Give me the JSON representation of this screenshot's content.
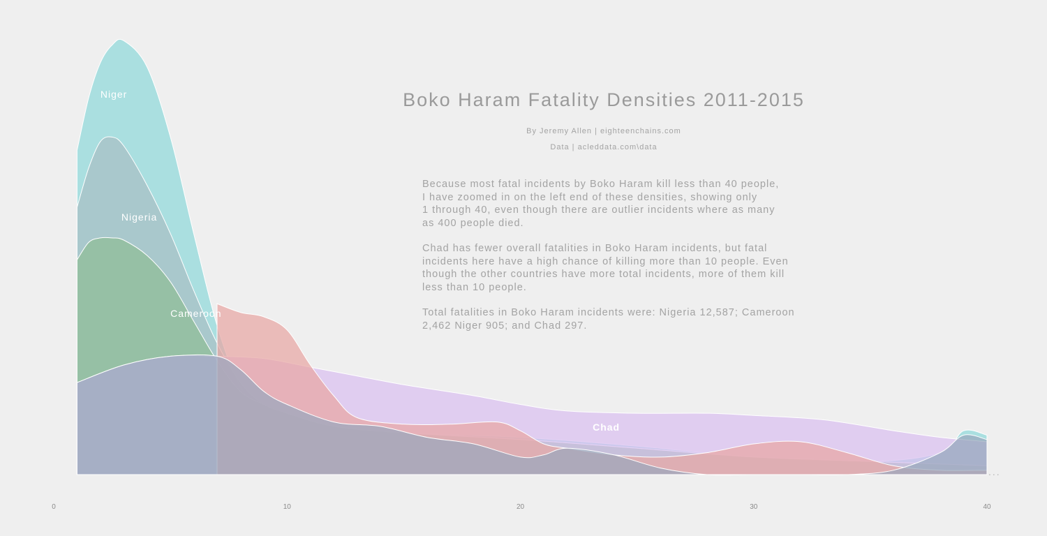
{
  "title": "Boko Haram Fatality Densities 2011-2015",
  "byline": "By Jeremy Allen | eighteenchains.com",
  "source": "Data | acleddata.com\\data",
  "notes": [
    [
      "Because most fatal incidents by Boko Haram kill less than 40 people,",
      "I have zoomed in on the left end of these densities, showing only",
      "1 through 40, even though there are outlier incidents where as many",
      "as 400 people died."
    ],
    [
      "Chad has fewer overall fatalities in Boko Haram incidents, but fatal",
      "incidents here have a high chance of killing more than 10 people. Even",
      "though the other countries have more total incidents, more of them kill",
      "less than 10 people."
    ],
    [
      "Total fatalities in Boko Haram incidents were: Nigeria 12,587; Cameroon",
      "2,462 Niger 905; and Chad 297."
    ]
  ],
  "ellipsis": "...",
  "chart_data": {
    "type": "area",
    "title": "Boko Haram Fatality Densities 2011-2015",
    "xlabel": "",
    "ylabel": "",
    "xlim": [
      0,
      40
    ],
    "ylim": [
      0,
      1
    ],
    "xticks": [
      0,
      10,
      20,
      30,
      40
    ],
    "grid": false,
    "legend": "inline labels",
    "series": [
      {
        "name": "Niger",
        "color": "#8fd8da",
        "points": [
          [
            1,
            0.74
          ],
          [
            1.5,
            0.86
          ],
          [
            2,
            0.94
          ],
          [
            2.5,
            0.98
          ],
          [
            3,
            0.99
          ],
          [
            4,
            0.93
          ],
          [
            5,
            0.77
          ],
          [
            6,
            0.55
          ],
          [
            7,
            0.34
          ],
          [
            8,
            0.2
          ],
          [
            9,
            0.15
          ],
          [
            10,
            0.13
          ],
          [
            12,
            0.11
          ],
          [
            15,
            0.095
          ],
          [
            20,
            0.085
          ],
          [
            25,
            0.065
          ],
          [
            30,
            0.04
          ],
          [
            35,
            0.03
          ],
          [
            38,
            0.05
          ],
          [
            39,
            0.1
          ],
          [
            40,
            0.09
          ]
        ]
      },
      {
        "name": "Nigeria",
        "color": "#a9bfc3",
        "points": [
          [
            1,
            0.61
          ],
          [
            1.5,
            0.7
          ],
          [
            2,
            0.76
          ],
          [
            2.5,
            0.77
          ],
          [
            3,
            0.75
          ],
          [
            4,
            0.66
          ],
          [
            5,
            0.55
          ],
          [
            6,
            0.42
          ],
          [
            7,
            0.3
          ],
          [
            8,
            0.21
          ],
          [
            9,
            0.16
          ],
          [
            10,
            0.14
          ],
          [
            12,
            0.11
          ],
          [
            15,
            0.095
          ],
          [
            20,
            0.08
          ],
          [
            25,
            0.06
          ],
          [
            30,
            0.04
          ],
          [
            35,
            0.03
          ],
          [
            40,
            0.02
          ]
        ]
      },
      {
        "name": "Cameroon",
        "color": "#8fbd96",
        "points": [
          [
            1,
            0.49
          ],
          [
            1.5,
            0.53
          ],
          [
            2,
            0.54
          ],
          [
            2.5,
            0.54
          ],
          [
            3,
            0.535
          ],
          [
            4,
            0.5
          ],
          [
            5,
            0.44
          ],
          [
            6,
            0.35
          ],
          [
            7,
            0.26
          ],
          [
            8,
            0.19
          ],
          [
            9,
            0.16
          ],
          [
            10,
            0.14
          ],
          [
            12,
            0.11
          ],
          [
            15,
            0.095
          ],
          [
            20,
            0.08
          ],
          [
            25,
            0.06
          ],
          [
            30,
            0.04
          ],
          [
            35,
            0.03
          ],
          [
            40,
            0.02
          ]
        ]
      },
      {
        "name": "Chad",
        "color": "#d9bff0",
        "points": [
          [
            1,
            0.21
          ],
          [
            3,
            0.25
          ],
          [
            5,
            0.27
          ],
          [
            7,
            0.27
          ],
          [
            9,
            0.265
          ],
          [
            11,
            0.245
          ],
          [
            13,
            0.225
          ],
          [
            15,
            0.205
          ],
          [
            18,
            0.18
          ],
          [
            20,
            0.16
          ],
          [
            22,
            0.145
          ],
          [
            25,
            0.14
          ],
          [
            28,
            0.14
          ],
          [
            30,
            0.135
          ],
          [
            33,
            0.125
          ],
          [
            36,
            0.1
          ],
          [
            38,
            0.085
          ],
          [
            40,
            0.075
          ]
        ]
      },
      {
        "name": "",
        "color": "#e8a6a3",
        "points": [
          [
            7,
            0.39
          ],
          [
            8,
            0.37
          ],
          [
            9,
            0.36
          ],
          [
            10,
            0.33
          ],
          [
            11,
            0.25
          ],
          [
            12,
            0.18
          ],
          [
            13,
            0.13
          ],
          [
            15,
            0.115
          ],
          [
            17,
            0.115
          ],
          [
            19,
            0.12
          ],
          [
            20,
            0.1
          ],
          [
            21,
            0.07
          ],
          [
            22,
            0.06
          ],
          [
            24,
            0.045
          ],
          [
            26,
            0.04
          ],
          [
            28,
            0.05
          ],
          [
            30,
            0.07
          ],
          [
            32,
            0.075
          ],
          [
            34,
            0.05
          ],
          [
            36,
            0.02
          ],
          [
            38,
            0.01
          ],
          [
            40,
            0.01
          ]
        ]
      },
      {
        "name": "",
        "color": "#9aa8bd",
        "points": [
          [
            1,
            0.21
          ],
          [
            3,
            0.25
          ],
          [
            5,
            0.27
          ],
          [
            7,
            0.27
          ],
          [
            8,
            0.24
          ],
          [
            9,
            0.19
          ],
          [
            10,
            0.16
          ],
          [
            12,
            0.12
          ],
          [
            14,
            0.11
          ],
          [
            16,
            0.085
          ],
          [
            18,
            0.07
          ],
          [
            20,
            0.04
          ],
          [
            21,
            0.045
          ],
          [
            22,
            0.06
          ],
          [
            24,
            0.045
          ],
          [
            26,
            0.015
          ],
          [
            28,
            0.0
          ],
          [
            30,
            0.0
          ],
          [
            32,
            0.0
          ],
          [
            34,
            0.0
          ],
          [
            36,
            0.01
          ],
          [
            38,
            0.05
          ],
          [
            39,
            0.09
          ],
          [
            40,
            0.08
          ]
        ]
      }
    ],
    "labels": [
      {
        "text": "Niger",
        "x": 2.0,
        "y": 0.86
      },
      {
        "text": "Nigeria",
        "x": 2.9,
        "y": 0.58
      },
      {
        "text": "Cameroon",
        "x": 5.0,
        "y": 0.36
      },
      {
        "text": "Chad",
        "x": 23.1,
        "y": 0.1
      }
    ]
  }
}
